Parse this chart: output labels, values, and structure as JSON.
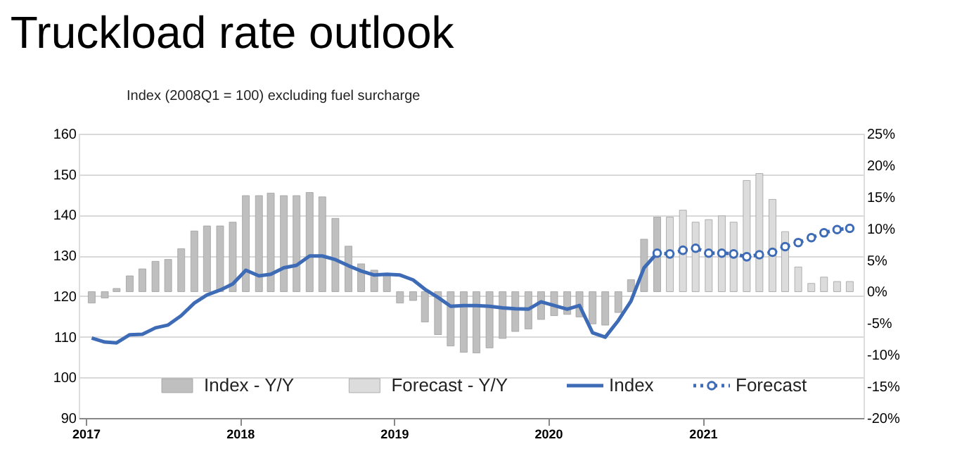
{
  "chart_data": {
    "type": "bar",
    "title": "Truckload rate outlook",
    "subtitle": "Index (2008Q1 = 100) excluding fuel surcharge",
    "x": [
      "2017-01-15",
      "2017-02-15",
      "2017-03-15",
      "2017-04-15",
      "2017-05-15",
      "2017-06-15",
      "2017-07-15",
      "2017-08-15",
      "2017-09-15",
      "2017-10-15",
      "2017-11-15",
      "2017-12-15",
      "2018-01-15",
      "2018-02-15",
      "2018-03-15",
      "2018-04-15",
      "2018-05-15",
      "2018-06-15",
      "2018-07-15",
      "2018-08-15",
      "2018-09-15",
      "2018-10-15",
      "2018-11-15",
      "2018-12-15",
      "2019-01-15",
      "2019-02-15",
      "2019-03-15",
      "2019-04-15",
      "2019-05-15",
      "2019-06-15",
      "2019-07-15",
      "2019-08-15",
      "2019-09-15",
      "2019-10-15",
      "2019-11-15",
      "2019-12-15",
      "2020-01-15",
      "2020-02-15",
      "2020-03-15",
      "2020-04-15",
      "2020-05-15",
      "2020-06-15",
      "2020-07-15",
      "2020-08-15",
      "2020-09-15",
      "2020-10-15",
      "2020-11-15",
      "2020-12-15",
      "2021-01-15",
      "2021-02-15",
      "2021-03-15",
      "2021-04-15",
      "2021-05-15",
      "2021-06-15",
      "2021-07-15",
      "2021-08-15",
      "2021-09-15",
      "2021-10-15",
      "2021-11-15",
      "2021-12-15"
    ],
    "xlim": [
      "2017-01-01",
      "2021-12-31"
    ],
    "xticks": [
      "2017",
      "2018",
      "2019",
      "2020",
      "2021"
    ],
    "ylim": [
      90,
      160
    ],
    "yticks": [
      90,
      100,
      110,
      120,
      130,
      140,
      150,
      160
    ],
    "y2lim": [
      -20,
      25
    ],
    "y2ticks": [
      {
        "value": -20,
        "label": "-20%"
      },
      {
        "value": -15,
        "label": "-15%"
      },
      {
        "value": -10,
        "label": "-10%"
      },
      {
        "value": -5,
        "label": "-5%"
      },
      {
        "value": 0,
        "label": "0%"
      },
      {
        "value": 5,
        "label": "5%"
      },
      {
        "value": 10,
        "label": "10%"
      },
      {
        "value": 15,
        "label": "15%"
      },
      {
        "value": 20,
        "label": "20%"
      },
      {
        "value": 25,
        "label": "25%"
      }
    ],
    "grid": "y",
    "legend": "bottom",
    "series": [
      {
        "name": "Index - Y/Y",
        "type": "bar",
        "axis": "y2",
        "color": "#bfbfbf",
        "values": [
          -1.8,
          -1.0,
          0.5,
          2.5,
          3.6,
          4.8,
          5.1,
          6.8,
          9.6,
          10.4,
          10.4,
          11.0,
          15.2,
          15.2,
          15.6,
          15.2,
          15.2,
          15.7,
          15.0,
          11.6,
          7.2,
          4.4,
          3.4,
          2.7,
          -1.8,
          -1.4,
          -4.8,
          -6.8,
          -8.6,
          -9.6,
          -9.7,
          -8.9,
          -7.4,
          -6.3,
          -5.9,
          -4.4,
          -3.8,
          -3.6,
          -4.0,
          -5.1,
          -5.3,
          -3.3,
          1.9,
          8.3,
          11.8,
          null,
          null,
          null,
          null,
          null,
          null,
          null,
          null,
          null,
          null,
          null,
          null,
          null,
          null,
          null
        ]
      },
      {
        "name": "Forecast - Y/Y",
        "type": "bar",
        "axis": "y2",
        "color": "#dcdcdc",
        "values": [
          null,
          null,
          null,
          null,
          null,
          null,
          null,
          null,
          null,
          null,
          null,
          null,
          null,
          null,
          null,
          null,
          null,
          null,
          null,
          null,
          null,
          null,
          null,
          null,
          null,
          null,
          null,
          null,
          null,
          null,
          null,
          null,
          null,
          null,
          null,
          null,
          null,
          null,
          null,
          null,
          null,
          null,
          null,
          null,
          null,
          11.8,
          12.9,
          11.0,
          11.4,
          12.0,
          11.0,
          17.6,
          18.7,
          14.6,
          9.5,
          3.9,
          1.3,
          2.3,
          1.6,
          1.6
        ]
      },
      {
        "name": "Index",
        "type": "line",
        "color": "#3d6bb5",
        "line_style": "solid",
        "marker": "none",
        "values": [
          109.7,
          108.7,
          108.5,
          110.5,
          110.6,
          112.2,
          112.9,
          115.2,
          118.3,
          120.3,
          121.5,
          123.0,
          126.4,
          125.0,
          125.4,
          127.0,
          127.6,
          129.9,
          129.9,
          129.0,
          127.5,
          126.2,
          125.2,
          125.4,
          125.2,
          124.0,
          121.7,
          119.7,
          117.5,
          117.7,
          117.7,
          117.5,
          117.1,
          116.9,
          116.8,
          118.6,
          117.7,
          116.8,
          117.7,
          111.0,
          109.9,
          114.0,
          118.8,
          127.0,
          130.6,
          null,
          null,
          null,
          null,
          null,
          null,
          null,
          null,
          null,
          null,
          null,
          null,
          null,
          null,
          null
        ]
      },
      {
        "name": "Forecast",
        "type": "line",
        "color": "#3d6bb5",
        "line_style": "dotted",
        "marker": "circle",
        "values": [
          null,
          null,
          null,
          null,
          null,
          null,
          null,
          null,
          null,
          null,
          null,
          null,
          null,
          null,
          null,
          null,
          null,
          null,
          null,
          null,
          null,
          null,
          null,
          null,
          null,
          null,
          null,
          null,
          null,
          null,
          null,
          null,
          null,
          null,
          null,
          null,
          null,
          null,
          null,
          null,
          null,
          null,
          null,
          null,
          130.6,
          130.4,
          131.3,
          131.8,
          130.6,
          130.6,
          130.4,
          129.7,
          130.2,
          130.8,
          132.2,
          133.2,
          134.4,
          135.6,
          136.4,
          136.7
        ]
      }
    ]
  }
}
